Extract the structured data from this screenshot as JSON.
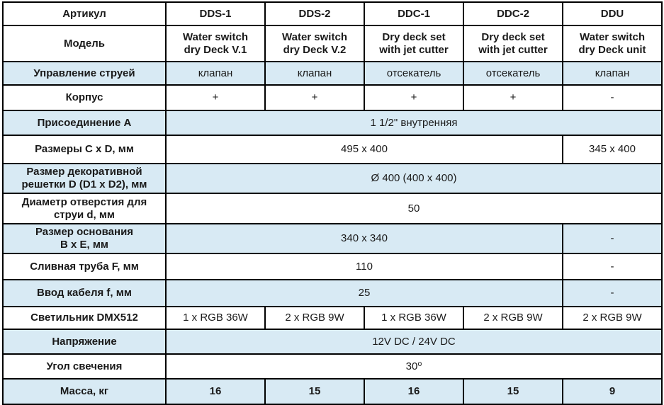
{
  "colors": {
    "shaded_row_bg": "#d8eaf4",
    "column_code_text": "#1f3864",
    "body_text": "#1a1a1a",
    "grid_border": "#000000"
  },
  "table": {
    "header": {
      "label": "Артикул",
      "codes": [
        "DDS-1",
        "DDS-2",
        "DDC-1",
        "DDC-2",
        "DDU"
      ]
    },
    "rows": [
      {
        "label": "Модель",
        "shaded": false,
        "cells": [
          {
            "text": "Water switch\ndry Deck V.1",
            "span": 1,
            "bold": true
          },
          {
            "text": "Water switch\ndry Deck V.2",
            "span": 1,
            "bold": true
          },
          {
            "text": "Dry deck set\nwith jet cutter",
            "span": 1,
            "bold": true
          },
          {
            "text": "Dry deck set\nwith jet cutter",
            "span": 1,
            "bold": true
          },
          {
            "text": "Water switch\ndry Deck unit",
            "span": 1,
            "bold": true
          }
        ]
      },
      {
        "label": "Управление струей",
        "shaded": true,
        "cells": [
          {
            "text": "клапан",
            "span": 1,
            "bold": false
          },
          {
            "text": "клапан",
            "span": 1,
            "bold": false
          },
          {
            "text": "отсекатель",
            "span": 1,
            "bold": false
          },
          {
            "text": "отсекатель",
            "span": 1,
            "bold": false
          },
          {
            "text": "клапан",
            "span": 1,
            "bold": false
          }
        ]
      },
      {
        "label": "Корпус",
        "shaded": false,
        "cells": [
          {
            "text": "+",
            "span": 1,
            "bold": false
          },
          {
            "text": "+",
            "span": 1,
            "bold": false
          },
          {
            "text": "+",
            "span": 1,
            "bold": false
          },
          {
            "text": "+",
            "span": 1,
            "bold": false
          },
          {
            "text": "-",
            "span": 1,
            "bold": false
          }
        ]
      },
      {
        "label": "Присоединение A",
        "shaded": true,
        "cells": [
          {
            "text": "1 1/2\" внутренняя",
            "span": 5,
            "bold": false
          }
        ]
      },
      {
        "label": "Размеры C x D, мм",
        "shaded": false,
        "cells": [
          {
            "text": "495 x 400",
            "span": 4,
            "bold": false
          },
          {
            "text": "345 x 400",
            "span": 1,
            "bold": false
          }
        ]
      },
      {
        "label": "Размер декоративной\nрешетки D (D1 x D2), мм",
        "shaded": true,
        "cells": [
          {
            "text": "Ø 400 (400 x 400)",
            "span": 5,
            "bold": false
          }
        ]
      },
      {
        "label": "Диаметр отверстия для\nструи d, мм",
        "shaded": false,
        "cells": [
          {
            "text": "50",
            "span": 5,
            "bold": false
          }
        ]
      },
      {
        "label": "Размер основания\nB x E, мм",
        "shaded": true,
        "cells": [
          {
            "text": "340 x 340",
            "span": 4,
            "bold": false
          },
          {
            "text": "-",
            "span": 1,
            "bold": false
          }
        ]
      },
      {
        "label": "Сливная труба F, мм",
        "shaded": false,
        "cells": [
          {
            "text": "110",
            "span": 4,
            "bold": false
          },
          {
            "text": "-",
            "span": 1,
            "bold": false
          }
        ]
      },
      {
        "label": "Ввод кабеля f, мм",
        "shaded": true,
        "cells": [
          {
            "text": "25",
            "span": 4,
            "bold": false
          },
          {
            "text": "-",
            "span": 1,
            "bold": false
          }
        ]
      },
      {
        "label": "Светильник DMX512",
        "shaded": false,
        "cells": [
          {
            "text": "1 x RGB 36W",
            "span": 1,
            "bold": false
          },
          {
            "text": "2 x RGB 9W",
            "span": 1,
            "bold": false
          },
          {
            "text": "1 x RGB 36W",
            "span": 1,
            "bold": false
          },
          {
            "text": "2 x RGB 9W",
            "span": 1,
            "bold": false
          },
          {
            "text": "2 x RGB 9W",
            "span": 1,
            "bold": false
          }
        ]
      },
      {
        "label": "Напряжение",
        "shaded": true,
        "cells": [
          {
            "text": "12V DC / 24V DC",
            "span": 5,
            "bold": false
          }
        ]
      },
      {
        "label": "Угол свечения",
        "shaded": false,
        "cells": [
          {
            "text": "30⁰",
            "span": 5,
            "bold": false
          }
        ]
      },
      {
        "label": "Масса, кг",
        "shaded": true,
        "cells": [
          {
            "text": "16",
            "span": 1,
            "bold": true
          },
          {
            "text": "15",
            "span": 1,
            "bold": true
          },
          {
            "text": "16",
            "span": 1,
            "bold": true
          },
          {
            "text": "15",
            "span": 1,
            "bold": true
          },
          {
            "text": "9",
            "span": 1,
            "bold": true
          }
        ]
      }
    ]
  }
}
